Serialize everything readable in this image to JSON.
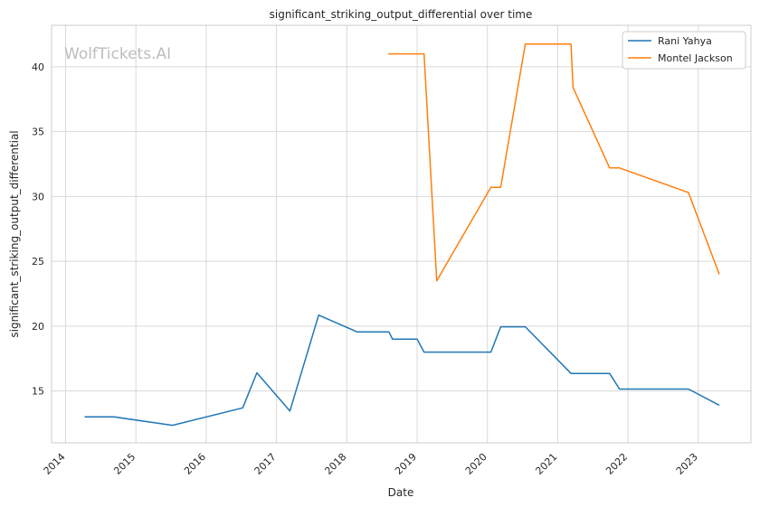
{
  "chart_data": {
    "type": "line",
    "title": "significant_striking_output_differential over time",
    "xlabel": "Date",
    "ylabel": "significant_striking_output_differential",
    "watermark": "WolfTickets.AI",
    "xlim": [
      2013.8,
      2023.75
    ],
    "ylim": [
      11.0,
      43.2
    ],
    "x_ticks": [
      2014,
      2015,
      2016,
      2017,
      2018,
      2019,
      2020,
      2021,
      2022,
      2023
    ],
    "y_ticks": [
      15,
      20,
      25,
      30,
      35,
      40
    ],
    "grid": true,
    "legend_position": "top-right",
    "series": [
      {
        "name": "Rani Yahya",
        "color": "#1f77b4",
        "points": [
          [
            2014.27,
            13.0
          ],
          [
            2014.69,
            13.0
          ],
          [
            2015.52,
            12.35
          ],
          [
            2016.52,
            13.7
          ],
          [
            2016.72,
            16.4
          ],
          [
            2017.19,
            13.45
          ],
          [
            2017.6,
            20.85
          ],
          [
            2018.15,
            19.55
          ],
          [
            2018.6,
            19.55
          ],
          [
            2018.65,
            19.0
          ],
          [
            2019.0,
            19.0
          ],
          [
            2019.1,
            18.0
          ],
          [
            2020.05,
            18.0
          ],
          [
            2020.19,
            19.95
          ],
          [
            2020.54,
            19.95
          ],
          [
            2021.19,
            16.35
          ],
          [
            2021.74,
            16.35
          ],
          [
            2021.88,
            15.15
          ],
          [
            2022.86,
            15.15
          ],
          [
            2023.3,
            13.9
          ]
        ]
      },
      {
        "name": "Montel Jackson",
        "color": "#ff7f0e",
        "points": [
          [
            2018.59,
            41.0
          ],
          [
            2019.1,
            41.0
          ],
          [
            2019.28,
            23.5
          ],
          [
            2020.05,
            30.7
          ],
          [
            2020.19,
            30.7
          ],
          [
            2020.54,
            41.75
          ],
          [
            2021.19,
            41.75
          ],
          [
            2021.22,
            38.4
          ],
          [
            2021.74,
            32.2
          ],
          [
            2021.88,
            32.2
          ],
          [
            2022.86,
            30.3
          ],
          [
            2023.3,
            24.0
          ]
        ]
      }
    ]
  }
}
